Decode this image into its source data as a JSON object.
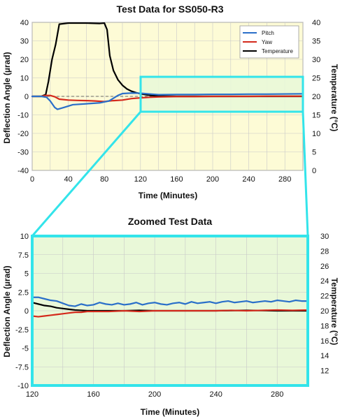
{
  "colors": {
    "pitch": "#2a6fc9",
    "yaw": "#d42a1c",
    "temperature": "#000000",
    "highlight": "#33e4ea",
    "plot_bg_main": "#fdfbd6",
    "zoom_bg": "#e9f8d8",
    "grid": "#c8c8c8"
  },
  "chart_data": [
    {
      "type": "line",
      "title": "Test Data for SS050-R3",
      "xlabel": "Time (Minutes)",
      "ylabel": "Deflection Angle (µrad)",
      "y2label": "Temperature (°C)",
      "xlim": [
        0,
        300
      ],
      "ylim": [
        -40,
        40
      ],
      "y2lim": [
        0,
        40
      ],
      "xticks": [
        0,
        40,
        80,
        120,
        160,
        200,
        240,
        280
      ],
      "yticks": [
        -40,
        -30,
        -20,
        -10,
        0,
        10,
        20,
        30,
        40
      ],
      "y2ticks": [
        0,
        5,
        10,
        15,
        20,
        25,
        30,
        35,
        40
      ],
      "grid": true,
      "legend_position": "top-right",
      "zero_reference": "dashed line at 0",
      "highlight_region": {
        "x": [
          120,
          300
        ],
        "y": [
          -10,
          10
        ]
      },
      "series": [
        {
          "name": "Pitch",
          "axis": "left",
          "x": [
            0,
            10,
            16,
            20,
            25,
            28,
            35,
            45,
            60,
            75,
            80,
            85,
            90,
            95,
            100,
            110,
            120,
            130,
            140,
            160,
            180,
            200,
            220,
            240,
            260,
            280,
            300
          ],
          "y": [
            0,
            0,
            -0.5,
            -2.5,
            -6,
            -7,
            -6,
            -4.5,
            -4,
            -3.5,
            -3,
            -2.5,
            -1,
            0.5,
            1.5,
            1.8,
            1.7,
            1.3,
            0.9,
            1.0,
            1.0,
            1.1,
            1.1,
            1.2,
            1.2,
            1.3,
            1.4
          ]
        },
        {
          "name": "Yaw",
          "axis": "left",
          "x": [
            0,
            10,
            15,
            20,
            25,
            30,
            40,
            50,
            60,
            70,
            80,
            85,
            90,
            100,
            110,
            120,
            130,
            140,
            150,
            160,
            180,
            200,
            220,
            240,
            260,
            280,
            300
          ],
          "y": [
            0,
            0,
            0.5,
            0.5,
            -0.2,
            -1.5,
            -2,
            -2.2,
            -2.3,
            -2.5,
            -2.8,
            -2.5,
            -2.3,
            -2,
            -1.2,
            -0.8,
            -0.5,
            -0.3,
            -0.2,
            -0.1,
            -0.1,
            0,
            0,
            0,
            0.1,
            0.1,
            0.1
          ]
        },
        {
          "name": "Temperature",
          "axis": "right",
          "x": [
            0,
            10,
            15,
            18,
            22,
            26,
            30,
            40,
            60,
            75,
            80,
            83,
            86,
            90,
            95,
            100,
            105,
            110,
            115,
            120,
            130,
            140,
            160,
            200,
            240,
            280,
            300
          ],
          "y": [
            20,
            20,
            20.5,
            24,
            30,
            34,
            39.5,
            39.8,
            39.8,
            39.7,
            39.8,
            38,
            31,
            27,
            24.5,
            23,
            22,
            21.4,
            21,
            20.7,
            20.3,
            20.1,
            20,
            20,
            20,
            20,
            20
          ]
        }
      ]
    },
    {
      "type": "line",
      "title": "Zoomed Test Data",
      "xlabel": "Time (Minutes)",
      "ylabel": "Deflection Angle (µrad)",
      "y2label": "Temperature (°C)",
      "xlim": [
        120,
        300
      ],
      "ylim": [
        -10,
        10
      ],
      "y2lim": [
        10,
        30
      ],
      "xticks": [
        120,
        160,
        200,
        240,
        280
      ],
      "yticks": [
        -10,
        -7.5,
        -5,
        -2.5,
        0,
        2.5,
        5,
        7.5,
        10
      ],
      "ytick_labels": [
        "-10",
        "-7.5",
        "-5",
        "-2.5",
        "0",
        "2.5",
        "5",
        "7.5",
        "10"
      ],
      "y2ticks": [
        12,
        14,
        16,
        18,
        20,
        22,
        24,
        26,
        28,
        30
      ],
      "grid": true,
      "series": [
        {
          "name": "Pitch",
          "axis": "left",
          "x": [
            120,
            124,
            128,
            132,
            136,
            140,
            144,
            148,
            152,
            156,
            160,
            164,
            168,
            172,
            176,
            180,
            184,
            188,
            192,
            196,
            200,
            204,
            208,
            212,
            216,
            220,
            224,
            228,
            232,
            236,
            240,
            244,
            248,
            252,
            256,
            260,
            264,
            268,
            272,
            276,
            280,
            284,
            288,
            292,
            296,
            300
          ],
          "y": [
            1.8,
            1.8,
            1.6,
            1.4,
            1.3,
            1.0,
            0.7,
            0.6,
            0.9,
            0.7,
            0.8,
            1.1,
            0.9,
            0.8,
            1.0,
            0.8,
            0.9,
            1.1,
            0.8,
            1.0,
            1.1,
            0.9,
            0.8,
            1.0,
            1.1,
            0.9,
            1.2,
            1.0,
            1.1,
            1.2,
            1.0,
            1.2,
            1.3,
            1.1,
            1.2,
            1.3,
            1.1,
            1.2,
            1.3,
            1.2,
            1.4,
            1.3,
            1.2,
            1.4,
            1.3,
            1.3
          ]
        },
        {
          "name": "Yaw",
          "axis": "left",
          "x": [
            120,
            124,
            128,
            132,
            136,
            140,
            144,
            148,
            152,
            156,
            160,
            170,
            180,
            190,
            200,
            210,
            220,
            230,
            240,
            250,
            260,
            270,
            280,
            290,
            300
          ],
          "y": [
            -0.7,
            -0.8,
            -0.7,
            -0.6,
            -0.5,
            -0.4,
            -0.3,
            -0.2,
            -0.2,
            -0.1,
            -0.1,
            -0.1,
            0,
            -0.1,
            0,
            0,
            0,
            0,
            0,
            0.05,
            0,
            0.05,
            0.1,
            0.05,
            0.1
          ]
        },
        {
          "name": "Temperature",
          "axis": "right",
          "x": [
            120,
            124,
            128,
            132,
            136,
            140,
            144,
            148,
            152,
            156,
            160,
            170,
            180,
            190,
            200,
            220,
            240,
            260,
            280,
            300
          ],
          "y": [
            21.1,
            20.9,
            20.7,
            20.6,
            20.4,
            20.3,
            20.2,
            20.1,
            20.05,
            20.0,
            20.0,
            20.0,
            20.0,
            20.05,
            20.0,
            20.0,
            20.0,
            20.05,
            20.0,
            20.0
          ]
        }
      ]
    }
  ]
}
